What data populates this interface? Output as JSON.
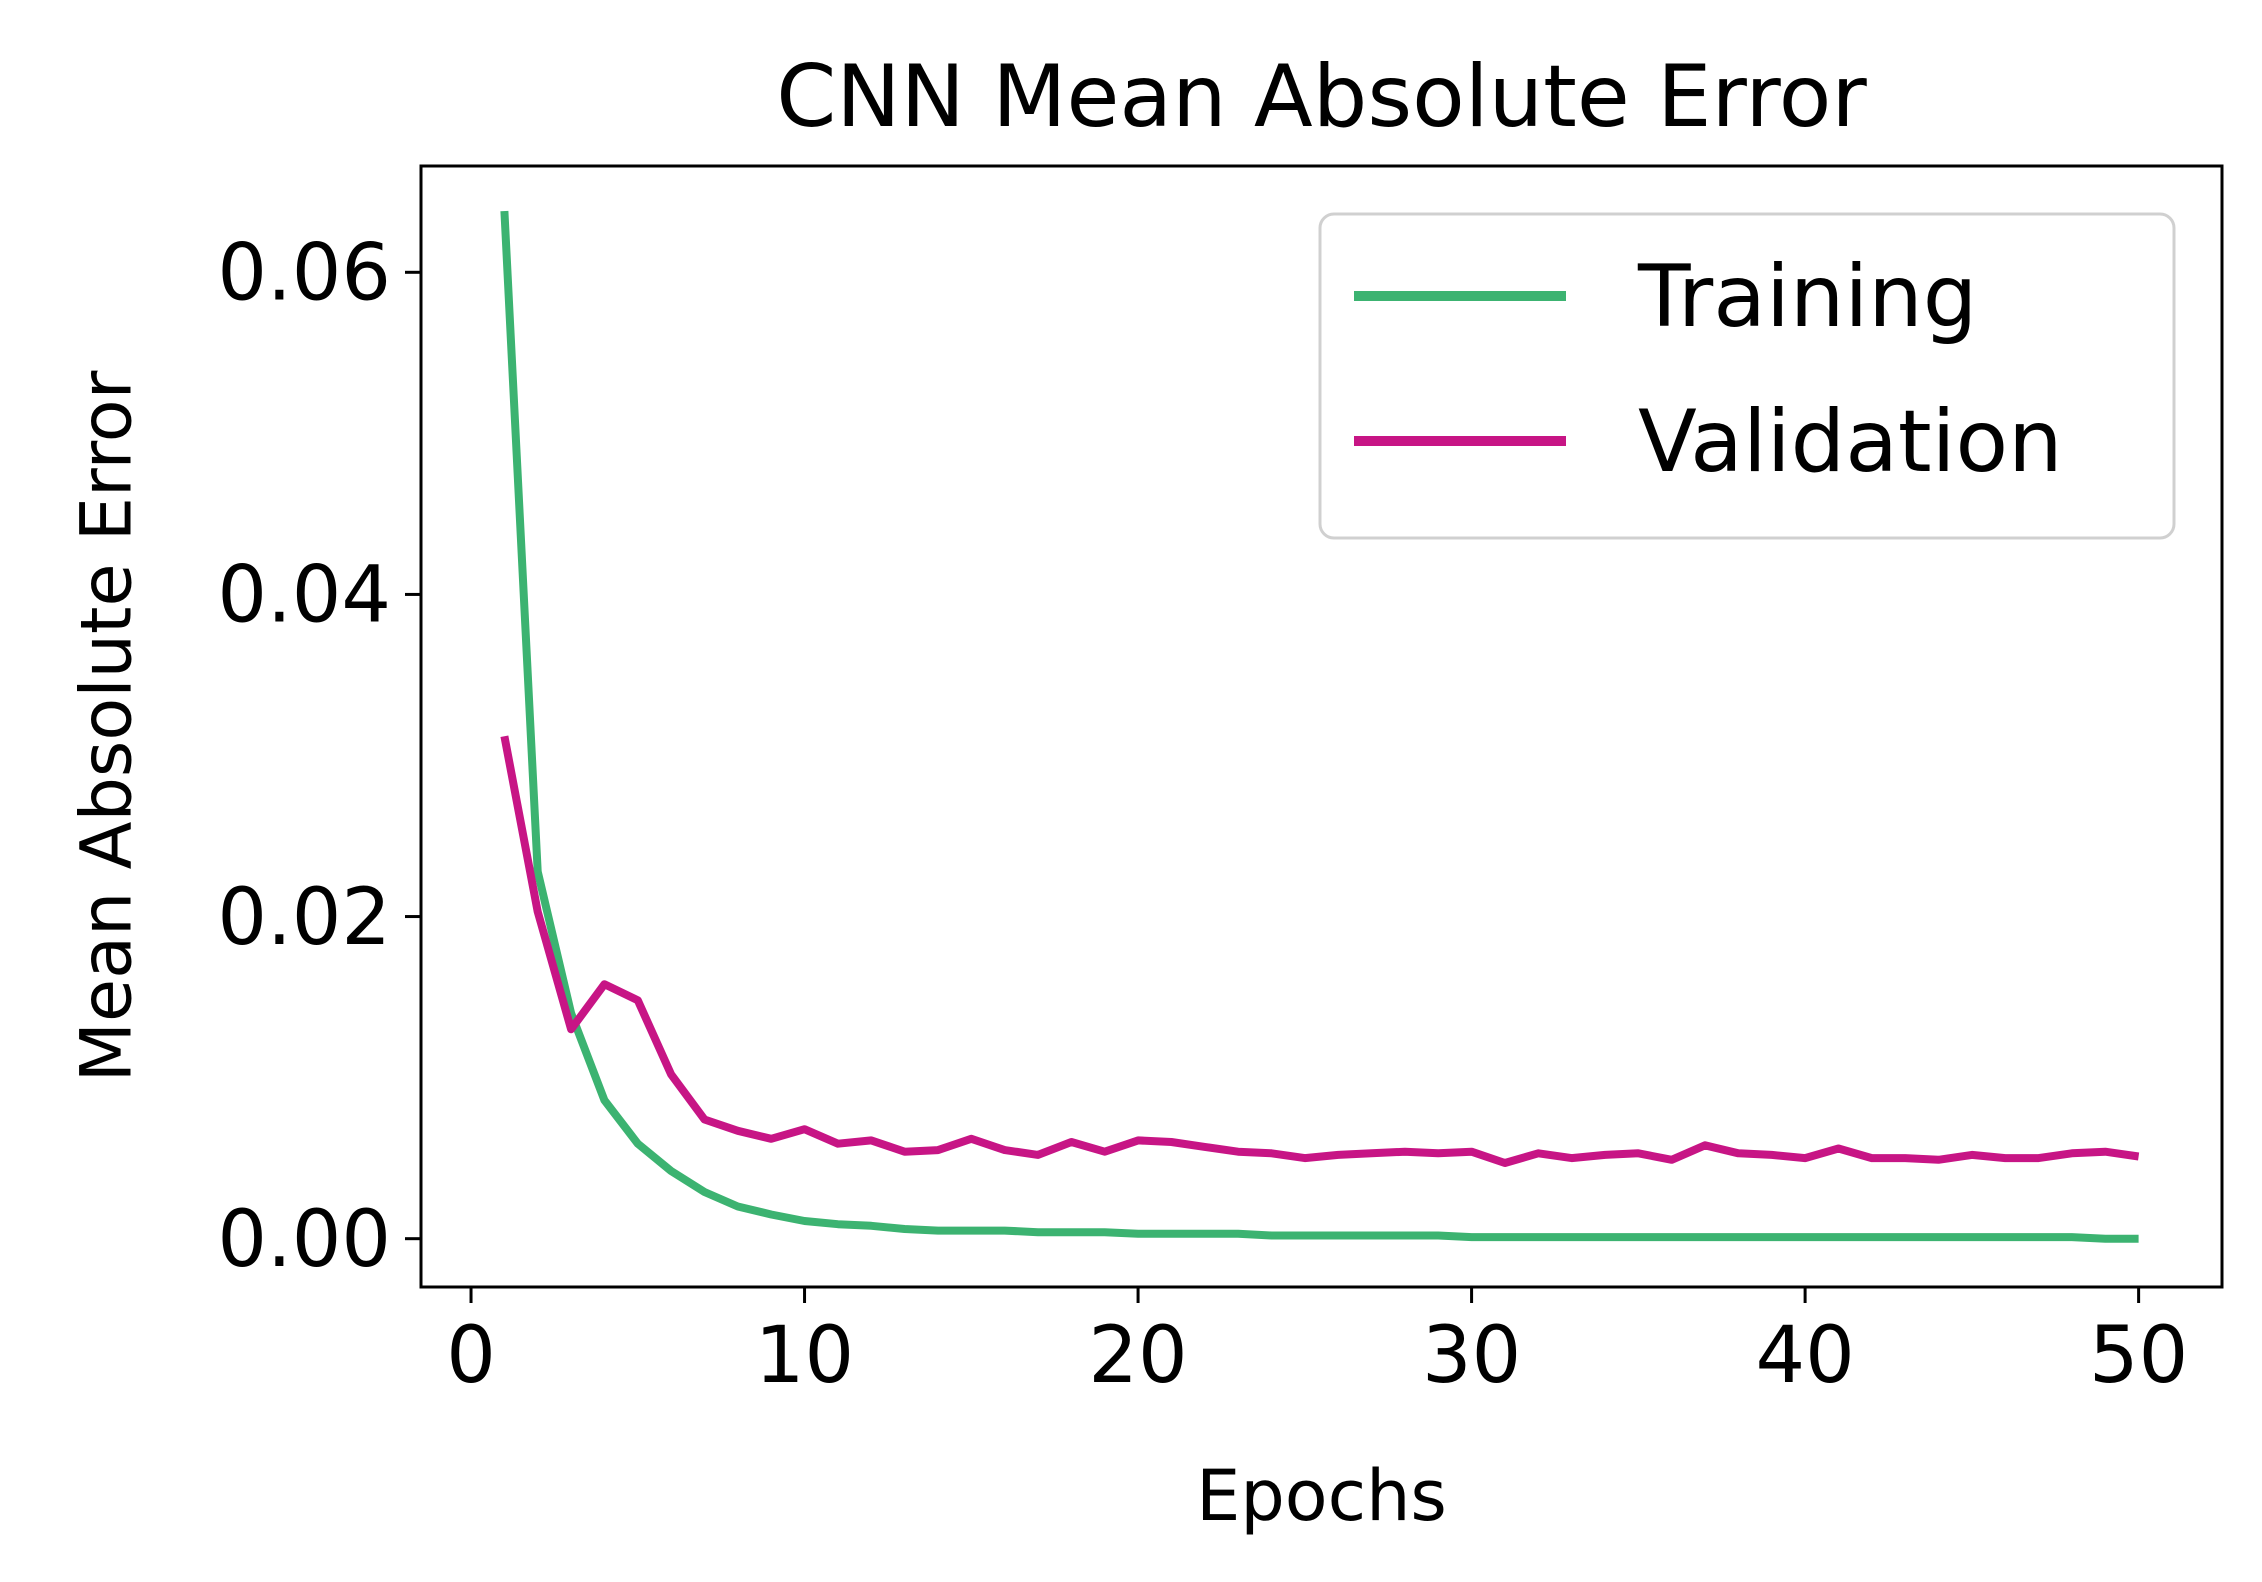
{
  "chart_data": {
    "type": "line",
    "title": "CNN Mean Absolute Error",
    "xlabel": "Epochs",
    "ylabel": "Mean Absolute Error",
    "xlim": [
      -1.5,
      52.5
    ],
    "ylim": [
      -0.003,
      0.0666
    ],
    "xticks": [
      0,
      10,
      20,
      30,
      40,
      50
    ],
    "xtick_labels": [
      "0",
      "10",
      "20",
      "30",
      "40",
      "50"
    ],
    "yticks": [
      0,
      0.02,
      0.04,
      0.06
    ],
    "ytick_labels": [
      "0.00",
      "0.02",
      "0.04",
      "0.06"
    ],
    "grid": false,
    "legend": "top-right",
    "x": [
      1,
      2,
      3,
      4,
      5,
      6,
      7,
      8,
      9,
      10,
      11,
      12,
      13,
      14,
      15,
      16,
      17,
      18,
      19,
      20,
      21,
      22,
      23,
      24,
      25,
      26,
      27,
      28,
      29,
      30,
      31,
      32,
      33,
      34,
      35,
      36,
      37,
      38,
      39,
      40,
      41,
      42,
      43,
      44,
      45,
      46,
      47,
      48,
      49,
      50
    ],
    "series": [
      {
        "name": "Training",
        "color": "#3cb371",
        "values": [
          0.0638,
          0.0228,
          0.014,
          0.0086,
          0.0059,
          0.0042,
          0.0029,
          0.002,
          0.0015,
          0.0011,
          0.0009,
          0.0008,
          0.0006,
          0.0005,
          0.0005,
          0.0005,
          0.0004,
          0.0004,
          0.0004,
          0.0003,
          0.0003,
          0.0003,
          0.0003,
          0.0002,
          0.0002,
          0.0002,
          0.0002,
          0.0002,
          0.0002,
          0.0001,
          0.0001,
          0.0001,
          0.0001,
          0.0001,
          0.0001,
          0.0001,
          0.0001,
          0.0001,
          0.0001,
          0.0001,
          0.0001,
          0.0001,
          0.0001,
          0.0001,
          0.0001,
          0.0001,
          0.0001,
          0.0001,
          0.0,
          0.0
        ]
      },
      {
        "name": "Validation",
        "color": "#c71585",
        "values": [
          0.0312,
          0.0203,
          0.013,
          0.0158,
          0.0148,
          0.0102,
          0.0074,
          0.0067,
          0.0062,
          0.0068,
          0.0059,
          0.0061,
          0.0054,
          0.0055,
          0.0062,
          0.0055,
          0.0052,
          0.006,
          0.0054,
          0.0061,
          0.006,
          0.0057,
          0.0054,
          0.0053,
          0.005,
          0.0052,
          0.0053,
          0.0054,
          0.0053,
          0.0054,
          0.0047,
          0.0053,
          0.005,
          0.0052,
          0.0053,
          0.0049,
          0.0058,
          0.0053,
          0.0052,
          0.005,
          0.0056,
          0.005,
          0.005,
          0.0049,
          0.0052,
          0.005,
          0.005,
          0.0053,
          0.0054,
          0.0051
        ]
      }
    ]
  }
}
